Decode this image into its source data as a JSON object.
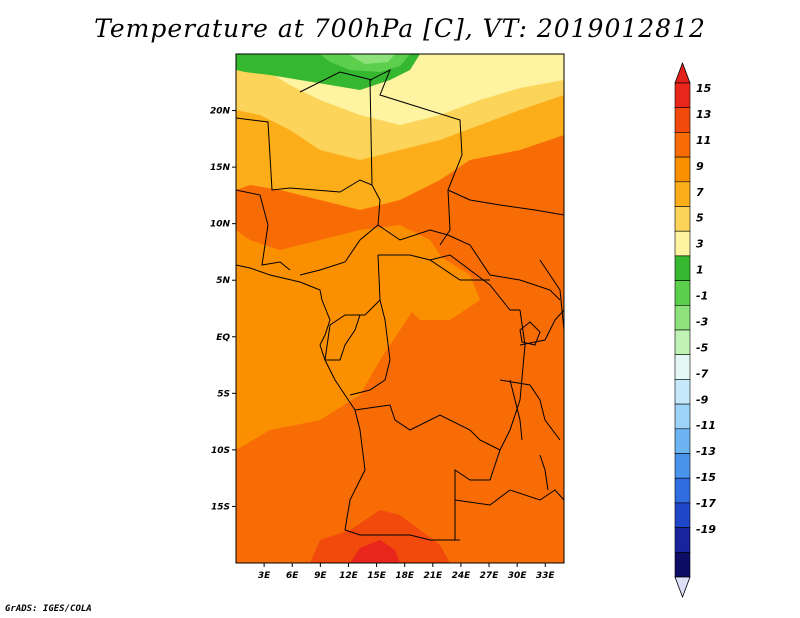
{
  "title": "Temperature at 700hPa [C], VT: 2019012812",
  "credit": "GrADS: IGES/COLA",
  "map": {
    "lat_labels": [
      {
        "label": "20N",
        "lat": 20
      },
      {
        "label": "15N",
        "lat": 15
      },
      {
        "label": "10N",
        "lat": 10
      },
      {
        "label": "5N",
        "lat": 5
      },
      {
        "label": "EQ",
        "lat": 0
      },
      {
        "label": "5S",
        "lat": -5
      },
      {
        "label": "10S",
        "lat": -10
      },
      {
        "label": "15S",
        "lat": -15
      }
    ],
    "lon_labels": [
      {
        "label": "3E",
        "lon": 3
      },
      {
        "label": "6E",
        "lon": 6
      },
      {
        "label": "9E",
        "lon": 9
      },
      {
        "label": "12E",
        "lon": 12
      },
      {
        "label": "15E",
        "lon": 15
      },
      {
        "label": "18E",
        "lon": 18
      },
      {
        "label": "21E",
        "lon": 21
      },
      {
        "label": "24E",
        "lon": 24
      },
      {
        "label": "27E",
        "lon": 27
      },
      {
        "label": "30E",
        "lon": 30
      },
      {
        "label": "33E",
        "lon": 33
      }
    ],
    "lon_range": [
      0,
      35
    ],
    "lat_range": [
      -20,
      25
    ]
  },
  "colorbar": {
    "labels": [
      "15",
      "13",
      "11",
      "9",
      "7",
      "5",
      "3",
      "1",
      "-1",
      "-3",
      "-5",
      "-7",
      "-9",
      "-11",
      "-13",
      "-15",
      "-17",
      "-19"
    ],
    "colors": [
      "#e8261c",
      "#f14a0c",
      "#f86c05",
      "#fa8f00",
      "#fbad1a",
      "#fcd45a",
      "#fdf3a0",
      "#35b830",
      "#5ccf4d",
      "#8de27b",
      "#bff2b4",
      "#e4f7f4",
      "#c5e9fb",
      "#9dd3f8",
      "#6db5f2",
      "#4a93eb",
      "#2f6de0",
      "#1f45c9",
      "#18239d",
      "#0d0d66"
    ],
    "top_arrow_color": "#e3201a",
    "bottom_arrow_color": "#dde0f7"
  }
}
